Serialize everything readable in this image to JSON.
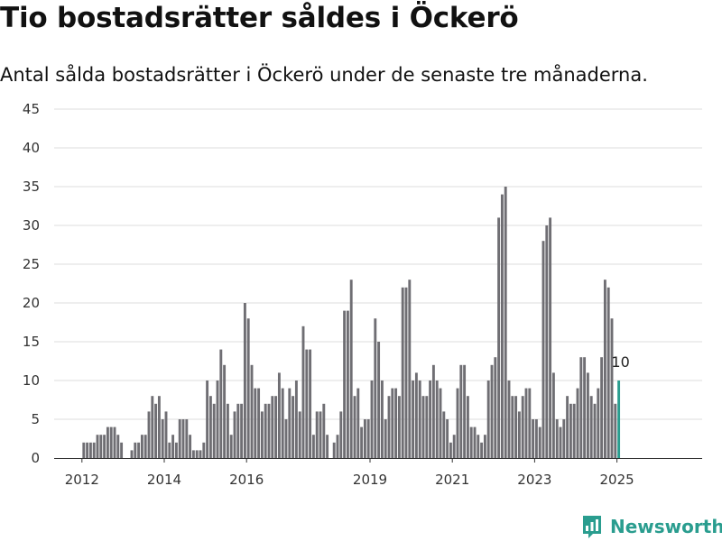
{
  "header": {
    "title": "Tio bostadsrätter såldes i Öckerö",
    "subtitle": "Antal sålda bostadsrätter i Öckerö under de senaste tre månaderna."
  },
  "branding": {
    "logo_text": "Newsworthy"
  },
  "colors": {
    "bar": "#6f6e73",
    "highlight": "#2a9d8f",
    "grid": "#dddddd",
    "brand": "#2a9d8f"
  },
  "chart_data": {
    "type": "bar",
    "title": "Tio bostadsrätter såldes i Öckerö",
    "subtitle": "Antal sålda bostadsrätter i Öckerö under de senaste tre månaderna.",
    "xlabel": "",
    "ylabel": "",
    "ylim": [
      0,
      45
    ],
    "yticks": [
      "0",
      "5",
      "10",
      "15",
      "20",
      "25",
      "30",
      "35",
      "40",
      "45"
    ],
    "xticks": [
      "2012",
      "2014",
      "2016",
      "2019",
      "2021",
      "2023",
      "2025"
    ],
    "grid": true,
    "legend": "none",
    "start": "2012-01",
    "frequency": "monthly",
    "values": [
      2,
      2,
      2,
      2,
      3,
      3,
      3,
      4,
      4,
      4,
      3,
      2,
      0,
      0,
      1,
      2,
      2,
      3,
      3,
      6,
      8,
      7,
      8,
      5,
      6,
      2,
      3,
      2,
      5,
      5,
      5,
      3,
      1,
      1,
      1,
      2,
      10,
      8,
      7,
      10,
      14,
      12,
      7,
      3,
      6,
      7,
      7,
      20,
      18,
      12,
      9,
      9,
      6,
      7,
      7,
      8,
      8,
      11,
      9,
      5,
      9,
      8,
      10,
      6,
      17,
      14,
      14,
      3,
      6,
      6,
      7,
      3,
      0,
      2,
      3,
      6,
      19,
      19,
      23,
      8,
      9,
      4,
      5,
      5,
      10,
      18,
      15,
      10,
      5,
      8,
      9,
      9,
      8,
      22,
      22,
      23,
      10,
      11,
      10,
      8,
      8,
      10,
      12,
      10,
      9,
      6,
      5,
      2,
      3,
      9,
      12,
      12,
      8,
      4,
      4,
      3,
      2,
      3,
      10,
      12,
      13,
      31,
      34,
      35,
      10,
      8,
      8,
      6,
      8,
      9,
      9,
      5,
      5,
      4,
      28,
      30,
      31,
      11,
      5,
      4,
      5,
      8,
      7,
      7,
      9,
      13,
      13,
      11,
      8,
      7,
      9,
      13,
      23,
      22,
      18,
      7,
      10
    ],
    "highlight_last": true,
    "annotation": "10"
  }
}
